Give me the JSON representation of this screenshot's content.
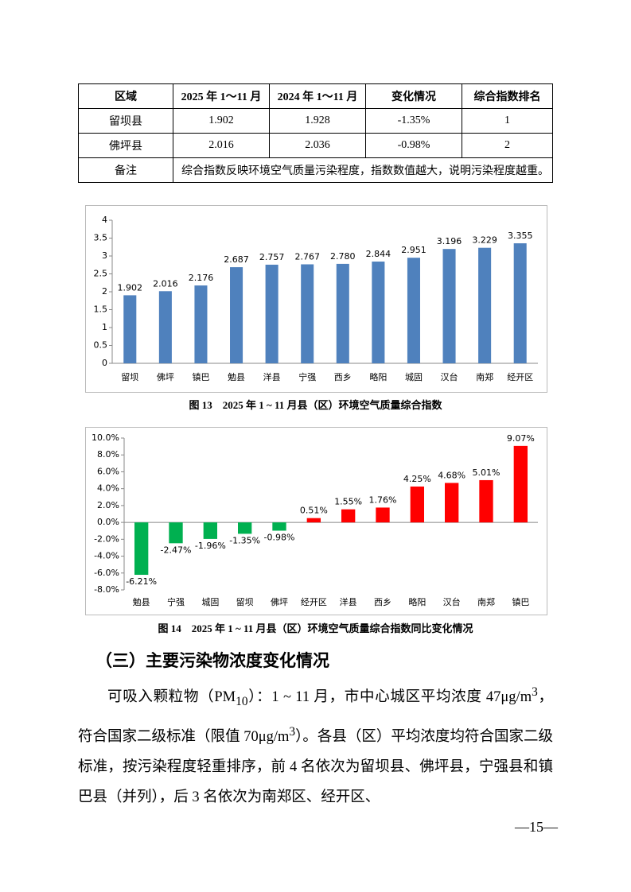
{
  "table": {
    "header": [
      "区域",
      "2025 年 1～11 月",
      "2024 年 1～11 月",
      "变化情况",
      "综合指数排名"
    ],
    "rows": [
      [
        "留坝县",
        "1.902",
        "1.928",
        "-1.35%",
        "1"
      ],
      [
        "佛坪县",
        "2.016",
        "2.036",
        "-0.98%",
        "2"
      ],
      [
        "备注",
        "综合指数反映环境空气质量污染程度，指数数值越大，说明污染程度越重。"
      ]
    ]
  },
  "chart_data": [
    {
      "type": "bar",
      "title": "图 13　2025 年 1 ~ 11 月县（区）环境空气质量综合指数",
      "categories": [
        "留坝",
        "佛坪",
        "镇巴",
        "勉县",
        "洋县",
        "宁强",
        "西乡",
        "略阳",
        "城固",
        "汉台",
        "南郑",
        "经开区"
      ],
      "values": [
        1.902,
        2.016,
        2.176,
        2.687,
        2.757,
        2.767,
        2.78,
        2.844,
        2.951,
        3.196,
        3.229,
        3.355
      ],
      "value_labels": [
        "1.902",
        "2.016",
        "2.176",
        "2.687",
        "2.757",
        "2.767",
        "2.780",
        "2.844",
        "2.951",
        "3.196",
        "3.229",
        "3.355"
      ],
      "color": "#4f81bd",
      "ylim": [
        0,
        4
      ],
      "yticks": [
        0,
        0.5,
        1,
        1.5,
        2,
        2.5,
        3,
        3.5,
        4
      ],
      "grid": false
    },
    {
      "type": "bar",
      "title": "图 14　2025 年 1 ~ 11 月县（区）环境空气质量综合指数同比变化情况",
      "categories": [
        "勉县",
        "宁强",
        "城固",
        "留坝",
        "佛坪",
        "经开区",
        "洋县",
        "西乡",
        "略阳",
        "汉台",
        "南郑",
        "镇巴"
      ],
      "values": [
        -6.21,
        -2.47,
        -1.96,
        -1.35,
        -0.98,
        0.51,
        1.55,
        1.76,
        4.25,
        4.68,
        5.01,
        9.07
      ],
      "value_labels": [
        "-6.21%",
        "-2.47%",
        "-1.96%",
        "-1.35%",
        "-0.98%",
        "0.51%",
        "1.55%",
        "1.76%",
        "4.25%",
        "4.68%",
        "5.01%",
        "9.07%"
      ],
      "positive_color": "#ff0000",
      "negative_color": "#00b050",
      "ylim": [
        -8,
        10
      ],
      "yticks": [
        {
          "value": -8,
          "label": "-8.0%"
        },
        {
          "value": -6,
          "label": "-6.0%"
        },
        {
          "value": -4,
          "label": "-4.0%"
        },
        {
          "value": -2,
          "label": "-2.0%"
        },
        {
          "value": 0,
          "label": "0.0%"
        },
        {
          "value": 2,
          "label": "2.0%"
        },
        {
          "value": 4,
          "label": "4.0%"
        },
        {
          "value": 6,
          "label": "6.0%"
        },
        {
          "value": 8,
          "label": "8.0%"
        },
        {
          "value": 10,
          "label": "10.0%"
        }
      ],
      "grid": false
    }
  ],
  "section": {
    "heading": "（三）主要污染物浓度变化情况",
    "paragraph": [
      "可吸入颗粒物（PM",
      "10",
      "）：1 ~ 11 月，市中心城区平均浓度 47μg/m",
      "3",
      "，符合国家二级标准（限值 70μg/m",
      "3",
      "）。各县（区）平均浓度均符合国家二级标准，按污染程度轻重排序，前 4 名依次为留坝县、佛坪县，宁强县和镇巴县（并列），后 3 名依次为南郑区、经开区、"
    ]
  },
  "page_number": "—15—"
}
